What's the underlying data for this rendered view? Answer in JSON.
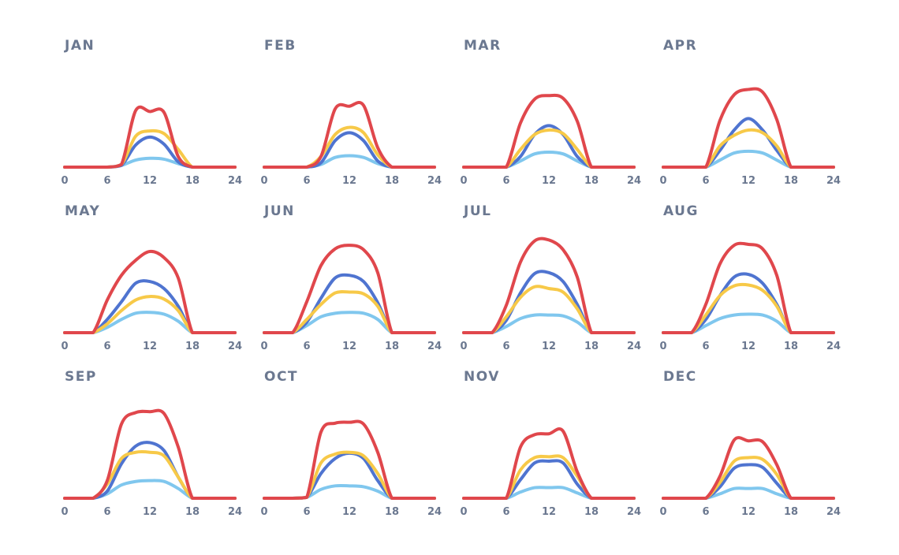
{
  "chart_data": {
    "type": "line",
    "layout": "small-multiples 3x4",
    "x": [
      0,
      2,
      4,
      6,
      8,
      10,
      12,
      14,
      16,
      18,
      20,
      22,
      24
    ],
    "xticks": [
      0,
      6,
      12,
      18,
      24
    ],
    "xlim": [
      0,
      24
    ],
    "ylim": [
      0,
      100
    ],
    "series_colors": {
      "red": "#e0474c",
      "yellow": "#f7c948",
      "blue": "#4f74d0",
      "lightblue": "#80c7ee"
    },
    "panels": [
      {
        "title": "JAN",
        "series": [
          {
            "name": "red",
            "values": [
              0,
              0,
              0,
              0,
              3,
              64,
              63,
              62,
              12,
              0,
              0,
              0,
              0
            ]
          },
          {
            "name": "yellow",
            "values": [
              0,
              0,
              0,
              0,
              3,
              35,
              41,
              38,
              20,
              0,
              0,
              0,
              0
            ]
          },
          {
            "name": "blue",
            "values": [
              0,
              0,
              0,
              0,
              2,
              25,
              34,
              26,
              6,
              0,
              0,
              0,
              0
            ]
          },
          {
            "name": "lightblue",
            "values": [
              0,
              0,
              0,
              0,
              2,
              8,
              10,
              9,
              4,
              0,
              0,
              0,
              0
            ]
          }
        ]
      },
      {
        "title": "FEB",
        "series": [
          {
            "name": "red",
            "values": [
              0,
              0,
              0,
              0,
              12,
              66,
              69,
              70,
              22,
              0,
              0,
              0,
              0
            ]
          },
          {
            "name": "yellow",
            "values": [
              0,
              0,
              0,
              0,
              12,
              37,
              45,
              39,
              14,
              0,
              0,
              0,
              0
            ]
          },
          {
            "name": "blue",
            "values": [
              0,
              0,
              0,
              0,
              5,
              30,
              39,
              30,
              7,
              0,
              0,
              0,
              0
            ]
          },
          {
            "name": "lightblue",
            "values": [
              0,
              0,
              0,
              0,
              3,
              11,
              13,
              11,
              4,
              0,
              0,
              0,
              0
            ]
          }
        ]
      },
      {
        "title": "MAR",
        "series": [
          {
            "name": "red",
            "values": [
              0,
              0,
              0,
              0,
              50,
              77,
              81,
              78,
              52,
              0,
              0,
              0,
              0
            ]
          },
          {
            "name": "yellow",
            "values": [
              0,
              0,
              0,
              0,
              20,
              37,
              42,
              38,
              20,
              0,
              0,
              0,
              0
            ]
          },
          {
            "name": "blue",
            "values": [
              0,
              0,
              0,
              0,
              12,
              37,
              47,
              37,
              12,
              0,
              0,
              0,
              0
            ]
          },
          {
            "name": "lightblue",
            "values": [
              0,
              0,
              0,
              0,
              7,
              15,
              17,
              15,
              7,
              0,
              0,
              0,
              0
            ]
          }
        ]
      },
      {
        "title": "APR",
        "series": [
          {
            "name": "red",
            "values": [
              0,
              0,
              0,
              0,
              53,
              82,
              88,
              85,
              54,
              0,
              0,
              0,
              0
            ]
          },
          {
            "name": "yellow",
            "values": [
              0,
              0,
              0,
              0,
              24,
              36,
              42,
              39,
              24,
              0,
              0,
              0,
              0
            ]
          },
          {
            "name": "blue",
            "values": [
              0,
              0,
              0,
              0,
              19,
              42,
              55,
              42,
              19,
              0,
              0,
              0,
              0
            ]
          },
          {
            "name": "lightblue",
            "values": [
              0,
              0,
              0,
              0,
              8,
              16,
              18,
              16,
              8,
              0,
              0,
              0,
              0
            ]
          }
        ]
      },
      {
        "title": "MAY",
        "series": [
          {
            "name": "red",
            "values": [
              0,
              0,
              0,
              37,
              65,
              82,
              92,
              85,
              62,
              0,
              0,
              0,
              0
            ]
          },
          {
            "name": "yellow",
            "values": [
              0,
              0,
              0,
              10,
              25,
              37,
              41,
              38,
              25,
              0,
              0,
              0,
              0
            ]
          },
          {
            "name": "blue",
            "values": [
              0,
              0,
              0,
              15,
              35,
              56,
              58,
              50,
              30,
              0,
              0,
              0,
              0
            ]
          },
          {
            "name": "lightblue",
            "values": [
              0,
              0,
              0,
              6,
              15,
              22,
              23,
              21,
              13,
              0,
              0,
              0,
              0
            ]
          }
        ]
      },
      {
        "title": "JUN",
        "series": [
          {
            "name": "red",
            "values": [
              0,
              0,
              0,
              35,
              76,
              95,
              99,
              94,
              68,
              0,
              0,
              0,
              0
            ]
          },
          {
            "name": "yellow",
            "values": [
              0,
              0,
              0,
              15,
              32,
              45,
              46,
              44,
              30,
              0,
              0,
              0,
              0
            ]
          },
          {
            "name": "blue",
            "values": [
              0,
              0,
              0,
              12,
              39,
              62,
              65,
              58,
              34,
              0,
              0,
              0,
              0
            ]
          },
          {
            "name": "lightblue",
            "values": [
              0,
              0,
              0,
              8,
              18,
              22,
              23,
              22,
              15,
              0,
              0,
              0,
              0
            ]
          }
        ]
      },
      {
        "title": "JUL",
        "series": [
          {
            "name": "red",
            "values": [
              0,
              0,
              0,
              31,
              80,
              104,
              105,
              94,
              63,
              0,
              0,
              0,
              0
            ]
          },
          {
            "name": "yellow",
            "values": [
              0,
              0,
              0,
              18,
              40,
              52,
              50,
              46,
              27,
              0,
              0,
              0,
              0
            ]
          },
          {
            "name": "blue",
            "values": [
              0,
              0,
              0,
              14,
              45,
              67,
              68,
              58,
              32,
              0,
              0,
              0,
              0
            ]
          },
          {
            "name": "lightblue",
            "values": [
              0,
              0,
              0,
              7,
              16,
              20,
              20,
              19,
              12,
              0,
              0,
              0,
              0
            ]
          }
        ]
      },
      {
        "title": "AUG",
        "series": [
          {
            "name": "red",
            "values": [
              0,
              0,
              0,
              32,
              78,
              99,
              100,
              95,
              65,
              0,
              0,
              0,
              0
            ]
          },
          {
            "name": "yellow",
            "values": [
              0,
              0,
              0,
              20,
              42,
              53,
              54,
              48,
              30,
              0,
              0,
              0,
              0
            ]
          },
          {
            "name": "blue",
            "values": [
              0,
              0,
              0,
              15,
              42,
              63,
              66,
              56,
              32,
              0,
              0,
              0,
              0
            ]
          },
          {
            "name": "lightblue",
            "values": [
              0,
              0,
              0,
              8,
              16,
              20,
              21,
              20,
              13,
              0,
              0,
              0,
              0
            ]
          }
        ]
      },
      {
        "title": "SEP",
        "series": [
          {
            "name": "red",
            "values": [
              0,
              0,
              0,
              20,
              84,
              97,
              98,
              96,
              58,
              0,
              0,
              0,
              0
            ]
          },
          {
            "name": "yellow",
            "values": [
              0,
              0,
              0,
              16,
              45,
              52,
              52,
              48,
              24,
              0,
              0,
              0,
              0
            ]
          },
          {
            "name": "blue",
            "values": [
              0,
              0,
              0,
              8,
              39,
              59,
              63,
              54,
              24,
              0,
              0,
              0,
              0
            ]
          },
          {
            "name": "lightblue",
            "values": [
              0,
              0,
              0,
              5,
              15,
              19,
              20,
              19,
              11,
              0,
              0,
              0,
              0
            ]
          }
        ]
      },
      {
        "title": "OCT",
        "series": [
          {
            "name": "red",
            "values": [
              0,
              0,
              0,
              1,
              75,
              85,
              86,
              84,
              52,
              0,
              0,
              0,
              0
            ]
          },
          {
            "name": "yellow",
            "values": [
              0,
              0,
              0,
              1,
              40,
              50,
              52,
              48,
              28,
              0,
              0,
              0,
              0
            ]
          },
          {
            "name": "blue",
            "values": [
              0,
              0,
              0,
              1,
              28,
              45,
              51,
              45,
              20,
              0,
              0,
              0,
              0
            ]
          },
          {
            "name": "lightblue",
            "values": [
              0,
              0,
              0,
              1,
              10,
              14,
              14,
              13,
              8,
              0,
              0,
              0,
              0
            ]
          }
        ]
      },
      {
        "title": "NOV",
        "series": [
          {
            "name": "red",
            "values": [
              0,
              0,
              0,
              0,
              58,
              72,
              73,
              76,
              30,
              0,
              0,
              0,
              0
            ]
          },
          {
            "name": "yellow",
            "values": [
              0,
              0,
              0,
              0,
              32,
              46,
              47,
              46,
              25,
              0,
              0,
              0,
              0
            ]
          },
          {
            "name": "blue",
            "values": [
              0,
              0,
              0,
              0,
              21,
              40,
              42,
              40,
              16,
              0,
              0,
              0,
              0
            ]
          },
          {
            "name": "lightblue",
            "values": [
              0,
              0,
              0,
              0,
              7,
              12,
              12,
              12,
              6,
              0,
              0,
              0,
              0
            ]
          }
        ]
      },
      {
        "title": "DEC",
        "series": [
          {
            "name": "red",
            "values": [
              0,
              0,
              0,
              0,
              25,
              66,
              65,
              64,
              38,
              0,
              0,
              0,
              0
            ]
          },
          {
            "name": "yellow",
            "values": [
              0,
              0,
              0,
              0,
              18,
              42,
              46,
              44,
              27,
              0,
              0,
              0,
              0
            ]
          },
          {
            "name": "blue",
            "values": [
              0,
              0,
              0,
              0,
              13,
              34,
              38,
              35,
              17,
              0,
              0,
              0,
              0
            ]
          },
          {
            "name": "lightblue",
            "values": [
              0,
              0,
              0,
              0,
              5,
              11,
              11,
              11,
              5,
              0,
              0,
              0,
              0
            ]
          }
        ]
      }
    ]
  }
}
